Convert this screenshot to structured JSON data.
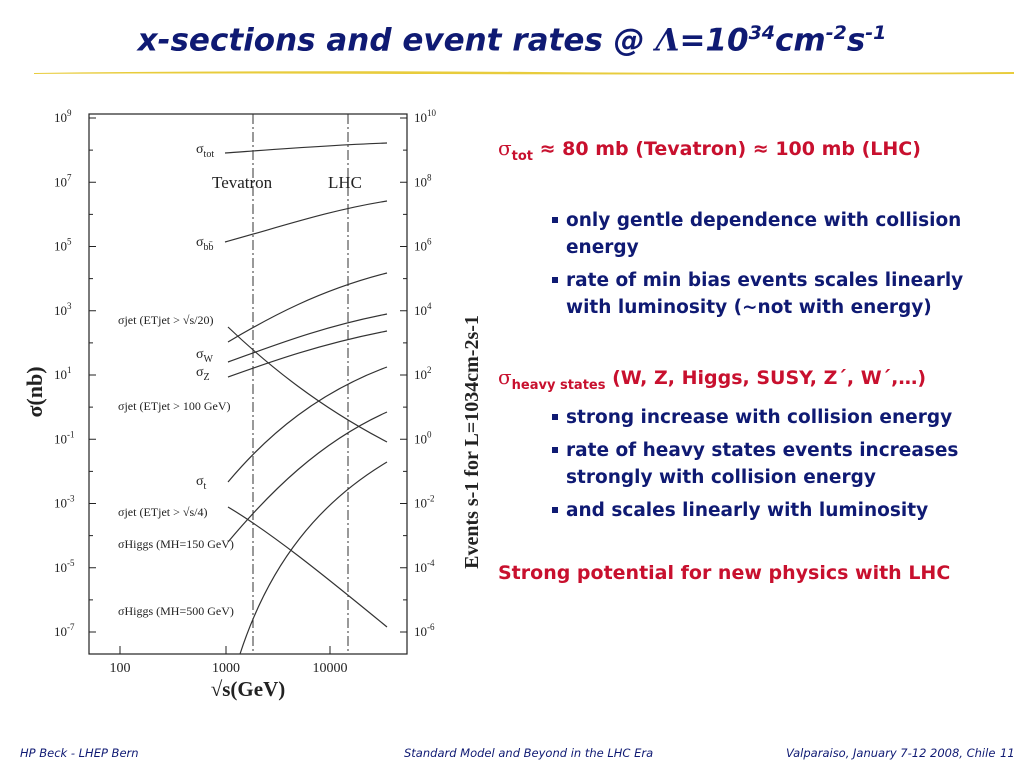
{
  "slide": {
    "title_main": "x-sections and event rates @ ",
    "title_lambda": "Λ",
    "title_eq": "=10",
    "title_exp1": "34",
    "title_cm": "cm",
    "title_exp2": "-2",
    "title_s": "s",
    "title_exp3": "-1"
  },
  "colors": {
    "title": "#0f1a73",
    "highlight": "#c8102e",
    "rule": "#e8cc3c"
  },
  "plot": {
    "left_ticks": [
      "10",
      "10",
      "10",
      "10",
      "10",
      "10",
      "10",
      "10",
      "10"
    ],
    "left_exps": [
      "9",
      "7",
      "5",
      "3",
      "1",
      "-1",
      "-3",
      "-5",
      "-7"
    ],
    "right_ticks": [
      "10",
      "10",
      "10",
      "10",
      "10",
      "10",
      "10",
      "10",
      "10"
    ],
    "right_exps": [
      "10",
      "8",
      "6",
      "4",
      "2",
      "0",
      "-2",
      "-4",
      "-6"
    ],
    "x_ticks": [
      "100",
      "1000",
      "10000"
    ],
    "ylabel_left": "σ(nb)",
    "ylabel_right": "Events s-1 for L=1034cm-2s-1",
    "xlabel": "√s(GeV)",
    "tevatron": "Tevatron",
    "lhc": "LHC",
    "labels": {
      "tot": "σ",
      "tot_sub": "tot",
      "bb": "σ",
      "bb_sub": "bb̄",
      "jet1": "σjet (ETjet > √s/20)",
      "W": "σ",
      "W_sub": "W",
      "Z": "σ",
      "Z_sub": "Z",
      "jet2": "σjet (ETjet > 100 GeV)",
      "t": "σ",
      "t_sub": "t",
      "jet3": "σjet (ETjet > √s/4)",
      "higgs150": "σHiggs (MH=150 GeV)",
      "higgs500": "σHiggs (MH=500 GeV)"
    }
  },
  "content": {
    "sigma": "σ",
    "tot_sub": "tot",
    "tot_text": " ≈ 80 mb (Tevatron) ",
    "tot_arrow": "",
    "tot_text2": " ≈ 100 mb (LHC)",
    "bullets1": [
      "only gentle dependence with collision energy",
      "rate of min bias events scales linearly with luminosity (~not with energy)"
    ],
    "heavy_sub": "heavy states",
    "heavy_text": " (W, Z, Higgs, SUSY, Z´, W´,…)",
    "bullets2": [
      "strong increase with collision energy",
      "rate of heavy states events increases strongly with collision energy",
      "and scales linearly with luminosity"
    ],
    "conclusion": "Strong potential for new physics with LHC"
  },
  "footer": {
    "left": "HP Beck - LHEP Bern",
    "center": "Standard Model and Beyond in the LHC Era",
    "right": "Valparaiso, January 7-12 2008, Chile",
    "page": "11"
  }
}
